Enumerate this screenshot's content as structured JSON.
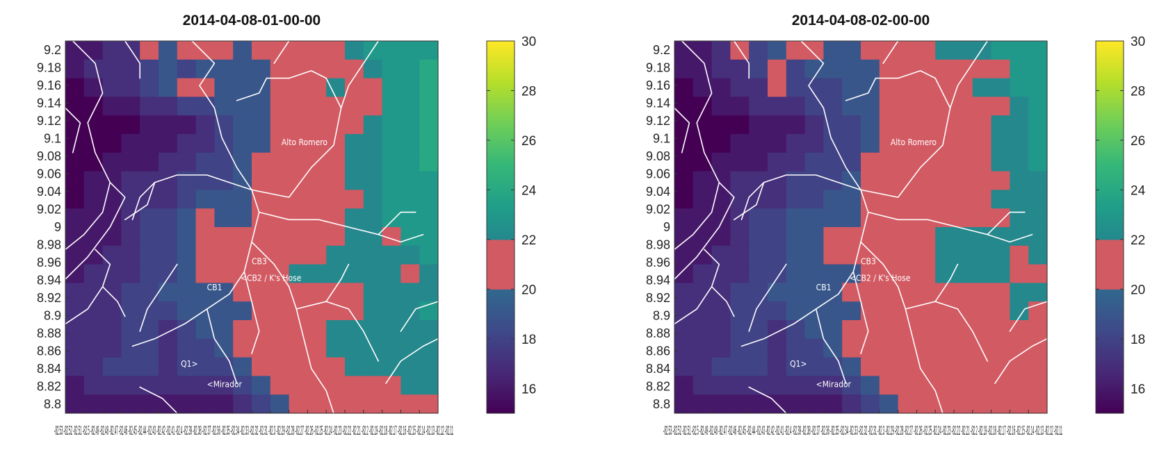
{
  "chart_data": [
    {
      "type": "heatmap",
      "title": "2014-04-08-01-00-00",
      "ylabel": "",
      "xlabel": "",
      "x_tick_text": "-82.53 -82.52 -82.51 -82.5 -82.49 -82.48 -82.47 -82.46 -82.45 -82.44 -82.43 -82.42 -82.41 -82.4 -82.39 -82.38 -82.37 -82.36 -82.35 -82.34 -82.33 -82.32 -82.31 -82.3 -82.29 -82.28 -82.27 -82.26 -82.25 -82.24 -82.23 -82.22 -82.21 -82.2 -82.19 -82.18 -82.17 -82.16 -82.15 -82.14 -82.13 -82.12 -82.11",
      "x_tick_label_display": "-82.53 ... -82.11 (overlapping)",
      "y_ticks": [
        9.2,
        9.18,
        9.16,
        9.14,
        9.12,
        9.1,
        9.08,
        9.06,
        9.04,
        9.02,
        9,
        8.98,
        8.96,
        8.94,
        8.92,
        8.9,
        8.88,
        8.86,
        8.84,
        8.82,
        8.8
      ],
      "ylim": [
        8.79,
        9.21
      ],
      "colorbar": {
        "min": 15,
        "max": 30,
        "ticks": [
          16,
          18,
          20,
          22,
          24,
          26,
          28,
          30
        ],
        "highlight_range": [
          20,
          22
        ],
        "highlight_color": "#d25a63"
      },
      "grid": "20 rows x 20 cols, values in degrees (colorbar units)",
      "cells": [
        [
          16,
          16,
          17,
          17,
          21,
          19,
          21,
          21,
          20,
          19,
          20,
          20,
          21,
          21,
          20,
          22,
          23,
          23,
          23,
          23
        ],
        [
          16,
          17,
          17,
          17,
          18,
          19,
          18,
          19,
          19,
          19,
          19,
          20,
          20,
          21,
          21,
          21,
          22,
          23,
          23,
          24
        ],
        [
          15,
          16,
          17,
          17,
          18,
          19,
          21,
          21,
          19,
          19,
          19,
          20,
          20,
          21,
          22,
          21,
          21,
          23,
          23,
          24
        ],
        [
          15,
          15,
          16,
          16,
          17,
          17,
          18,
          18,
          19,
          19,
          19,
          20,
          20,
          20,
          21,
          21,
          21,
          23,
          23,
          24
        ],
        [
          15,
          15,
          15,
          15,
          16,
          16,
          16,
          17,
          18,
          19,
          19,
          20,
          20,
          21,
          21,
          21,
          22,
          23,
          23,
          24
        ],
        [
          15,
          15,
          15,
          16,
          16,
          16,
          17,
          17,
          18,
          19,
          19,
          20,
          21,
          21,
          21,
          22,
          22,
          23,
          23,
          24
        ],
        [
          15,
          15,
          16,
          16,
          16,
          17,
          17,
          18,
          18,
          19,
          21,
          21,
          21,
          21,
          21,
          22,
          22,
          23,
          23,
          24
        ],
        [
          15,
          16,
          16,
          17,
          17,
          17,
          18,
          18,
          18,
          19,
          21,
          21,
          21,
          21,
          21,
          22,
          22,
          23,
          23,
          23
        ],
        [
          15,
          16,
          16,
          17,
          17,
          17,
          18,
          19,
          19,
          19,
          21,
          21,
          21,
          21,
          21,
          21,
          22,
          23,
          23,
          23
        ],
        [
          16,
          16,
          16,
          17,
          18,
          18,
          19,
          21,
          19,
          19,
          21,
          21,
          21,
          21,
          21,
          22,
          22,
          23,
          23,
          23
        ],
        [
          16,
          16,
          16,
          17,
          18,
          18,
          19,
          21,
          21,
          21,
          21,
          21,
          21,
          21,
          21,
          22,
          22,
          21,
          23,
          23
        ],
        [
          16,
          16,
          17,
          17,
          18,
          18,
          19,
          21,
          21,
          21,
          20,
          21,
          21,
          21,
          22,
          22,
          22,
          22,
          22,
          23
        ],
        [
          16,
          17,
          17,
          17,
          18,
          18,
          19,
          21,
          21,
          21,
          20,
          21,
          22,
          22,
          22,
          22,
          22,
          22,
          21,
          22
        ],
        [
          17,
          17,
          17,
          18,
          18,
          19,
          19,
          19,
          19,
          20,
          20,
          21,
          21,
          21,
          21,
          21,
          22,
          22,
          22,
          22
        ],
        [
          17,
          17,
          17,
          18,
          18,
          18,
          19,
          19,
          19,
          19,
          20,
          21,
          21,
          21,
          21,
          21,
          22,
          22,
          22,
          23
        ],
        [
          17,
          17,
          17,
          18,
          18,
          17,
          18,
          19,
          19,
          20,
          20,
          21,
          21,
          21,
          22,
          22,
          22,
          22,
          22,
          22
        ],
        [
          17,
          17,
          17,
          18,
          18,
          17,
          18,
          18,
          19,
          20,
          20,
          21,
          21,
          21,
          22,
          22,
          22,
          22,
          22,
          22
        ],
        [
          17,
          17,
          18,
          18,
          18,
          17,
          18,
          18,
          18,
          19,
          20,
          20,
          21,
          21,
          21,
          22,
          22,
          22,
          22,
          22
        ],
        [
          16,
          17,
          17,
          17,
          17,
          17,
          17,
          17,
          17,
          18,
          19,
          20,
          21,
          21,
          21,
          21,
          21,
          21,
          22,
          22
        ],
        [
          16,
          16,
          16,
          16,
          16,
          16,
          16,
          16,
          16,
          17,
          18,
          19,
          20,
          21,
          21,
          21,
          21,
          21,
          21,
          21
        ]
      ],
      "annotations": [
        "Alto Romero",
        "CB3",
        "<CB2 / K's Hose",
        "CB1",
        "Q1>",
        "<Mirador"
      ]
    },
    {
      "type": "heatmap",
      "title": "2014-04-08-02-00-00",
      "ylabel": "",
      "xlabel": "",
      "x_tick_text": "-82.53 -82.52 -82.51 -82.5 -82.49 -82.48 -82.47 -82.46 -82.45 -82.44 -82.43 -82.42 -82.41 -82.4 -82.39 -82.38 -82.37 -82.36 -82.35 -82.34 -82.33 -82.32 -82.31 -82.3 -82.29 -82.28 -82.27 -82.26 -82.25 -82.24 -82.23 -82.22 -82.21 -82.2 -82.19 -82.18 -82.17 -82.16 -82.15 -82.14 -82.13 -82.12 -82.11",
      "x_tick_label_display": "-82.53 ... -82.11 (overlapping)",
      "y_ticks": [
        9.2,
        9.18,
        9.16,
        9.14,
        9.12,
        9.1,
        9.08,
        9.06,
        9.04,
        9.02,
        9,
        8.98,
        8.96,
        8.94,
        8.92,
        8.9,
        8.88,
        8.86,
        8.84,
        8.82,
        8.8
      ],
      "ylim": [
        8.79,
        9.21
      ],
      "colorbar": {
        "min": 15,
        "max": 30,
        "ticks": [
          16,
          18,
          20,
          22,
          24,
          26,
          28,
          30
        ],
        "highlight_range": [
          20,
          22
        ],
        "highlight_color": "#d25a63"
      },
      "grid": "20 rows x 20 cols, values in degrees (colorbar units)",
      "cells": [
        [
          16,
          16,
          17,
          21,
          18,
          19,
          21,
          21,
          19,
          19,
          20,
          21,
          21,
          21,
          22,
          22,
          22,
          23,
          23,
          23
        ],
        [
          16,
          16,
          17,
          17,
          18,
          21,
          18,
          19,
          19,
          19,
          19,
          20,
          21,
          21,
          21,
          21,
          21,
          21,
          23,
          23
        ],
        [
          15,
          16,
          16,
          17,
          17,
          21,
          18,
          18,
          18,
          19,
          19,
          20,
          20,
          20,
          21,
          21,
          22,
          22,
          23,
          23
        ],
        [
          15,
          15,
          16,
          16,
          17,
          17,
          17,
          18,
          18,
          19,
          19,
          20,
          20,
          20,
          20,
          21,
          21,
          21,
          22,
          23
        ],
        [
          15,
          15,
          15,
          15,
          16,
          16,
          16,
          17,
          18,
          18,
          19,
          20,
          20,
          20,
          20,
          21,
          21,
          22,
          22,
          23
        ],
        [
          15,
          15,
          15,
          16,
          16,
          16,
          17,
          17,
          18,
          18,
          19,
          20,
          20,
          20,
          21,
          21,
          21,
          22,
          22,
          23
        ],
        [
          15,
          15,
          16,
          16,
          16,
          17,
          17,
          18,
          18,
          18,
          21,
          21,
          21,
          21,
          21,
          21,
          21,
          22,
          22,
          23
        ],
        [
          15,
          16,
          16,
          17,
          17,
          17,
          18,
          18,
          18,
          19,
          21,
          21,
          21,
          21,
          21,
          21,
          21,
          21,
          22,
          22
        ],
        [
          15,
          16,
          16,
          17,
          17,
          17,
          18,
          18,
          19,
          19,
          21,
          21,
          21,
          21,
          21,
          21,
          21,
          22,
          22,
          22
        ],
        [
          16,
          16,
          16,
          17,
          18,
          18,
          19,
          19,
          19,
          19,
          21,
          21,
          21,
          21,
          21,
          21,
          21,
          21,
          22,
          22
        ],
        [
          16,
          16,
          16,
          17,
          18,
          18,
          19,
          19,
          21,
          21,
          21,
          21,
          21,
          21,
          22,
          22,
          22,
          22,
          22,
          22
        ],
        [
          16,
          16,
          17,
          17,
          18,
          18,
          19,
          19,
          21,
          21,
          21,
          21,
          21,
          21,
          22,
          22,
          22,
          22,
          21,
          22
        ],
        [
          16,
          17,
          17,
          17,
          18,
          18,
          19,
          19,
          19,
          19,
          20,
          21,
          21,
          21,
          22,
          22,
          22,
          22,
          21,
          21
        ],
        [
          17,
          17,
          17,
          18,
          18,
          19,
          19,
          19,
          19,
          20,
          20,
          21,
          21,
          21,
          21,
          21,
          21,
          21,
          22,
          22
        ],
        [
          17,
          17,
          17,
          18,
          18,
          18,
          19,
          19,
          19,
          19,
          20,
          21,
          21,
          21,
          21,
          21,
          21,
          21,
          22,
          21
        ],
        [
          17,
          17,
          17,
          18,
          18,
          17,
          18,
          19,
          19,
          20,
          20,
          21,
          21,
          21,
          21,
          21,
          21,
          21,
          21,
          21
        ],
        [
          17,
          17,
          17,
          18,
          18,
          17,
          18,
          18,
          19,
          20,
          20,
          21,
          21,
          21,
          21,
          21,
          21,
          21,
          21,
          21
        ],
        [
          17,
          17,
          18,
          18,
          18,
          17,
          18,
          18,
          18,
          19,
          20,
          20,
          21,
          21,
          21,
          21,
          21,
          21,
          21,
          21
        ],
        [
          16,
          17,
          17,
          17,
          17,
          17,
          17,
          17,
          17,
          18,
          19,
          20,
          21,
          21,
          21,
          21,
          21,
          21,
          21,
          21
        ],
        [
          16,
          16,
          16,
          16,
          16,
          16,
          16,
          16,
          16,
          17,
          18,
          19,
          20,
          21,
          21,
          21,
          21,
          21,
          21,
          21
        ]
      ],
      "annotations": [
        "Alto Romero",
        "CB3",
        "<CB2 / K's Hose",
        "CB1",
        "Q1>",
        "<Mirador"
      ]
    }
  ],
  "colors": {
    "viridis": [
      "#440154",
      "#482878",
      "#3e4a89",
      "#31688e",
      "#26828e",
      "#1f9e89",
      "#35b779",
      "#6ece58",
      "#b5de2b",
      "#fde725"
    ],
    "highlight": "#d25a63",
    "rivers": "#ffffff"
  }
}
